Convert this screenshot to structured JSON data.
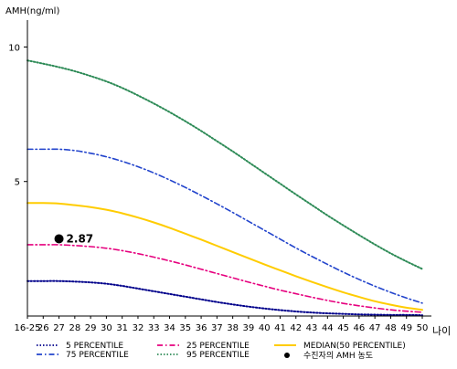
{
  "chart_data": {
    "type": "line",
    "ylabel": "AMH(ng/ml)",
    "xlabel": "나이",
    "ylim": [
      0,
      11
    ],
    "yticks": [
      5,
      10
    ],
    "categories": [
      "16-25",
      "26",
      "27",
      "28",
      "29",
      "30",
      "31",
      "32",
      "33",
      "34",
      "35",
      "36",
      "37",
      "38",
      "39",
      "40",
      "41",
      "42",
      "43",
      "44",
      "45",
      "46",
      "47",
      "48",
      "49",
      "50"
    ],
    "series": [
      {
        "name": "5 PERCENTILE",
        "color": "#00008b",
        "style": "dotted",
        "values": [
          1.3,
          1.3,
          1.3,
          1.28,
          1.25,
          1.2,
          1.12,
          1.02,
          0.92,
          0.82,
          0.72,
          0.62,
          0.52,
          0.43,
          0.35,
          0.28,
          0.22,
          0.17,
          0.13,
          0.1,
          0.08,
          0.06,
          0.05,
          0.04,
          0.04,
          0.03
        ]
      },
      {
        "name": "25 PERCENTILE",
        "color": "#e6007e",
        "style": "dashdot",
        "values": [
          2.65,
          2.65,
          2.65,
          2.62,
          2.58,
          2.52,
          2.43,
          2.32,
          2.19,
          2.05,
          1.9,
          1.74,
          1.58,
          1.42,
          1.26,
          1.11,
          0.96,
          0.83,
          0.7,
          0.58,
          0.47,
          0.38,
          0.3,
          0.23,
          0.18,
          0.14
        ]
      },
      {
        "name": "MEDIAN(50 PERCENTILE)",
        "color": "#ffcc00",
        "style": "solid",
        "values": [
          4.2,
          4.2,
          4.18,
          4.12,
          4.05,
          3.95,
          3.82,
          3.66,
          3.48,
          3.28,
          3.06,
          2.84,
          2.61,
          2.38,
          2.15,
          1.92,
          1.7,
          1.48,
          1.27,
          1.07,
          0.88,
          0.71,
          0.55,
          0.42,
          0.31,
          0.23
        ]
      },
      {
        "name": "75 PERCENTILE",
        "color": "#2244cc",
        "style": "dashdot",
        "values": [
          6.2,
          6.2,
          6.2,
          6.15,
          6.05,
          5.92,
          5.75,
          5.55,
          5.32,
          5.06,
          4.78,
          4.48,
          4.17,
          3.85,
          3.52,
          3.19,
          2.86,
          2.53,
          2.22,
          1.92,
          1.63,
          1.36,
          1.11,
          0.88,
          0.67,
          0.48
        ]
      },
      {
        "name": "95 PERCENTILE",
        "color": "#2e8b57",
        "style": "dotted",
        "values": [
          9.5,
          9.38,
          9.25,
          9.1,
          8.92,
          8.72,
          8.48,
          8.2,
          7.9,
          7.58,
          7.24,
          6.88,
          6.5,
          6.12,
          5.72,
          5.32,
          4.92,
          4.52,
          4.13,
          3.74,
          3.37,
          3.01,
          2.66,
          2.33,
          2.03,
          1.75
        ]
      }
    ],
    "patient": {
      "label": "수진자의 AMH 농도",
      "x": "27",
      "y": 2.87,
      "value_label": "2.87",
      "color": "#000000"
    }
  }
}
